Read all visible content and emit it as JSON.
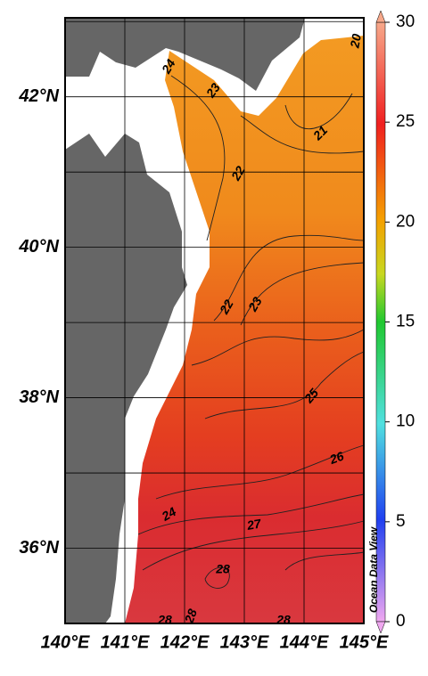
{
  "map": {
    "xlim": [
      140,
      145.0
    ],
    "ylim": [
      35,
      43.05
    ],
    "lon_ticks": [
      {
        "value": 140,
        "label": "140°E"
      },
      {
        "value": 141,
        "label": "141°E"
      },
      {
        "value": 142,
        "label": "142°E"
      },
      {
        "value": 143,
        "label": "143°E"
      },
      {
        "value": 144,
        "label": "144°E"
      },
      {
        "value": 145,
        "label": "145°E"
      }
    ],
    "lat_ticks": [
      {
        "value": 36,
        "label": "36°N"
      },
      {
        "value": 38,
        "label": "38°N"
      },
      {
        "value": 40,
        "label": "40°N"
      },
      {
        "value": 42,
        "label": "42°N"
      }
    ],
    "contour_labels": [
      24,
      23,
      20,
      21,
      22,
      22,
      23,
      25,
      26,
      24,
      27,
      28,
      28,
      28,
      28
    ],
    "watermark": "Ocean Data View",
    "colorbar": {
      "lim": [
        0,
        30
      ],
      "ticks": [
        0,
        5,
        10,
        15,
        20,
        25,
        30
      ]
    }
  }
}
